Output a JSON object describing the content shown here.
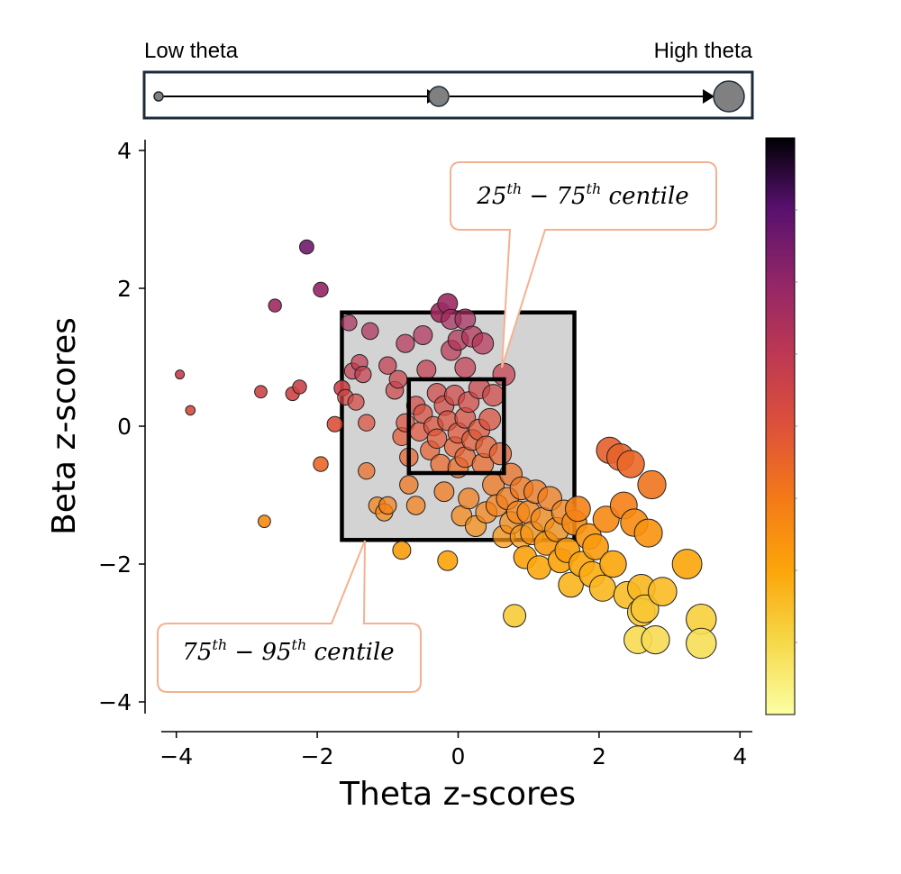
{
  "size_legend": {
    "low_label": "Low theta",
    "high_label": "High theta"
  },
  "callouts": {
    "iqr": {
      "pre": "25",
      "sup1": "th",
      "mid": " − 75",
      "sup2": "th",
      "post": " centile"
    },
    "outer": {
      "pre": "75",
      "sup1": "th",
      "mid": " − 95",
      "sup2": "th",
      "post": " centile"
    }
  },
  "chart_data": {
    "type": "scatter",
    "xlabel": "Theta z-scores",
    "ylabel": "Beta z-scores",
    "xlim": [
      -4.3,
      4.3
    ],
    "ylim": [
      -4.2,
      4.2
    ],
    "xticks": [
      -4,
      -2,
      0,
      2,
      4
    ],
    "yticks": [
      -4,
      -2,
      0,
      2,
      4
    ],
    "xtick_labels": [
      "−4",
      "−2",
      "0",
      "2",
      "4"
    ],
    "ytick_labels": [
      "−4",
      "−2",
      "0",
      "2",
      "4"
    ],
    "size_encodes": "theta",
    "color_encodes": "beta",
    "colormap": "inferno",
    "colorbar_range": [
      -4,
      4
    ],
    "centile_boxes": [
      {
        "label": "25th − 75th centile",
        "x": [
          -0.7,
          0.65
        ],
        "y": [
          -0.68,
          0.68
        ]
      },
      {
        "label": "75th − 95th centile",
        "x": [
          -1.65,
          1.65
        ],
        "y": [
          -1.65,
          1.65
        ]
      }
    ],
    "points": [
      [
        -3.95,
        0.75
      ],
      [
        -3.8,
        0.23
      ],
      [
        -2.8,
        0.5
      ],
      [
        -2.75,
        -1.38
      ],
      [
        -2.6,
        1.75
      ],
      [
        -2.35,
        0.47
      ],
      [
        -2.25,
        0.57
      ],
      [
        -2.15,
        2.6
      ],
      [
        -1.95,
        1.98
      ],
      [
        -1.95,
        -0.55
      ],
      [
        -1.75,
        0.03
      ],
      [
        -1.65,
        0.55
      ],
      [
        -1.6,
        0.42
      ],
      [
        -1.55,
        1.5
      ],
      [
        -1.5,
        0.8
      ],
      [
        -1.45,
        0.35
      ],
      [
        -1.4,
        0.92
      ],
      [
        -1.35,
        0.75
      ],
      [
        -1.3,
        -0.65
      ],
      [
        -1.3,
        0.05
      ],
      [
        -1.25,
        1.38
      ],
      [
        -1.15,
        -1.15
      ],
      [
        -1.05,
        -1.25
      ],
      [
        -1.0,
        -1.15
      ],
      [
        -1.0,
        0.88
      ],
      [
        -0.9,
        0.52
      ],
      [
        -0.85,
        0.68
      ],
      [
        -0.8,
        -1.8
      ],
      [
        -0.8,
        -0.15
      ],
      [
        -0.75,
        1.2
      ],
      [
        -0.75,
        0.05
      ],
      [
        -0.7,
        -0.45
      ],
      [
        -0.7,
        -0.85
      ],
      [
        -0.6,
        -1.15
      ],
      [
        -0.6,
        0.3
      ],
      [
        -0.55,
        -0.08
      ],
      [
        -0.5,
        1.32
      ],
      [
        -0.5,
        0.18
      ],
      [
        -0.45,
        0.82
      ],
      [
        -0.4,
        -0.35
      ],
      [
        -0.35,
        0.0
      ],
      [
        -0.3,
        0.48
      ],
      [
        -0.3,
        -0.18
      ],
      [
        -0.25,
        1.65
      ],
      [
        -0.25,
        -0.55
      ],
      [
        -0.2,
        0.3
      ],
      [
        -0.2,
        -0.95
      ],
      [
        -0.15,
        1.78
      ],
      [
        -0.15,
        0.08
      ],
      [
        -0.15,
        -1.95
      ],
      [
        -0.1,
        1.55
      ],
      [
        -0.1,
        1.1
      ],
      [
        -0.05,
        -0.3
      ],
      [
        -0.05,
        0.45
      ],
      [
        0.0,
        1.25
      ],
      [
        0.0,
        -0.1
      ],
      [
        0.0,
        -0.6
      ],
      [
        0.05,
        -1.3
      ],
      [
        0.1,
        -0.45
      ],
      [
        0.1,
        0.12
      ],
      [
        0.1,
        1.55
      ],
      [
        0.1,
        0.85
      ],
      [
        0.15,
        -1.05
      ],
      [
        0.15,
        0.35
      ],
      [
        0.2,
        -0.2
      ],
      [
        0.2,
        1.3
      ],
      [
        0.25,
        -1.45
      ],
      [
        0.3,
        0.55
      ],
      [
        0.3,
        -0.05
      ],
      [
        0.35,
        -0.55
      ],
      [
        0.35,
        1.2
      ],
      [
        0.4,
        -1.25
      ],
      [
        0.4,
        -0.3
      ],
      [
        0.45,
        0.1
      ],
      [
        0.5,
        -0.85
      ],
      [
        0.5,
        0.45
      ],
      [
        0.55,
        -1.15
      ],
      [
        0.6,
        -0.4
      ],
      [
        0.65,
        -1.6
      ],
      [
        0.65,
        0.75
      ],
      [
        0.7,
        -1.05
      ],
      [
        0.75,
        -1.4
      ],
      [
        0.75,
        -0.7
      ],
      [
        0.8,
        -2.75
      ],
      [
        0.85,
        -1.25
      ],
      [
        0.9,
        -1.6
      ],
      [
        0.9,
        -0.9
      ],
      [
        0.95,
        -1.9
      ],
      [
        1.0,
        -1.25
      ],
      [
        1.05,
        -1.55
      ],
      [
        1.1,
        -0.95
      ],
      [
        1.15,
        -2.05
      ],
      [
        1.2,
        -1.35
      ],
      [
        1.25,
        -1.7
      ],
      [
        1.3,
        -1.05
      ],
      [
        1.4,
        -1.5
      ],
      [
        1.45,
        -1.95
      ],
      [
        1.5,
        -1.25
      ],
      [
        1.55,
        -1.8
      ],
      [
        1.6,
        -2.3
      ],
      [
        1.65,
        -1.4
      ],
      [
        1.7,
        -1.2
      ],
      [
        1.75,
        -2.0
      ],
      [
        1.85,
        -1.6
      ],
      [
        1.9,
        -2.15
      ],
      [
        1.95,
        -1.75
      ],
      [
        2.05,
        -2.35
      ],
      [
        2.1,
        -1.35
      ],
      [
        2.15,
        -0.35
      ],
      [
        2.2,
        -2.0
      ],
      [
        2.3,
        -0.45
      ],
      [
        2.35,
        -1.15
      ],
      [
        2.4,
        -2.45
      ],
      [
        2.45,
        -0.55
      ],
      [
        2.5,
        -1.4
      ],
      [
        2.55,
        -3.1
      ],
      [
        2.6,
        -2.35
      ],
      [
        2.6,
        -2.7
      ],
      [
        2.65,
        -2.65
      ],
      [
        2.7,
        -1.55
      ],
      [
        2.75,
        -0.85
      ],
      [
        2.8,
        -3.1
      ],
      [
        2.9,
        -2.4
      ],
      [
        3.25,
        -2.0
      ],
      [
        3.45,
        -2.8
      ],
      [
        3.45,
        -3.15
      ]
    ]
  }
}
